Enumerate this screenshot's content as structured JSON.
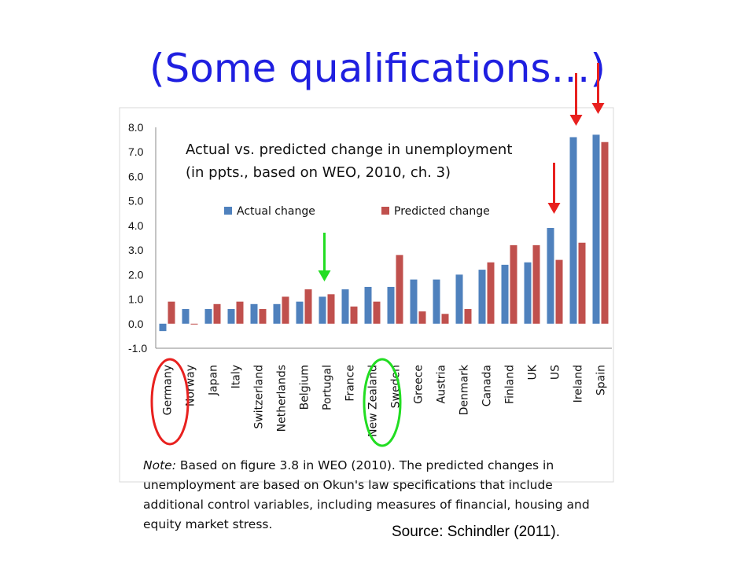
{
  "slide_title": "(Some qualifications…)",
  "chart_data": {
    "type": "bar",
    "title": "Actual vs. predicted change in unemployment",
    "subtitle": "(in ppts., based on WEO, 2010, ch. 3)",
    "categories": [
      "Germany",
      "Norway",
      "Japan",
      "Italy",
      "Switzerland",
      "Netherlands",
      "Belgium",
      "Portugal",
      "France",
      "New Zealand",
      "Sweden",
      "Greece",
      "Austria",
      "Denmark",
      "Canada",
      "Finland",
      "UK",
      "US",
      "Ireland",
      "Spain"
    ],
    "series": [
      {
        "name": "Actual change",
        "color": "#4f81bd",
        "values": [
          -0.3,
          0.6,
          0.6,
          0.6,
          0.8,
          0.8,
          0.9,
          1.1,
          1.4,
          1.5,
          1.5,
          1.8,
          1.8,
          2.0,
          2.2,
          2.4,
          2.5,
          3.9,
          7.6,
          7.7
        ]
      },
      {
        "name": "Predicted change",
        "color": "#c0504d",
        "values": [
          0.9,
          0.0,
          0.8,
          0.9,
          0.6,
          1.1,
          1.4,
          1.2,
          0.7,
          0.9,
          2.8,
          0.5,
          0.4,
          0.6,
          2.5,
          3.2,
          3.2,
          2.6,
          3.3,
          7.4
        ]
      }
    ],
    "y_ticks": [
      "8.0",
      "7.0",
      "6.0",
      "5.0",
      "4.0",
      "3.0",
      "2.0",
      "1.0",
      "0.0",
      "-1.0"
    ],
    "ylim": [
      -1.0,
      8.0
    ],
    "legend_position": "top",
    "grid": false
  },
  "annotations": {
    "red_arrows": [
      "US",
      "Ireland",
      "Spain"
    ],
    "green_arrow": "Portugal",
    "red_circle": [
      "Germany",
      "Norway"
    ],
    "green_circle": [
      "New Zealand",
      "Sweden"
    ],
    "red_color": "#e8211f",
    "green_color": "#22dd22"
  },
  "note": {
    "label": "Note:",
    "text": " Based on figure 3.8 in WEO (2010). The predicted changes in unemployment are based on Okun's law specifications that include additional control variables, including measures of financial, housing and equity market stress."
  },
  "source": "Source: Schindler (2011)."
}
